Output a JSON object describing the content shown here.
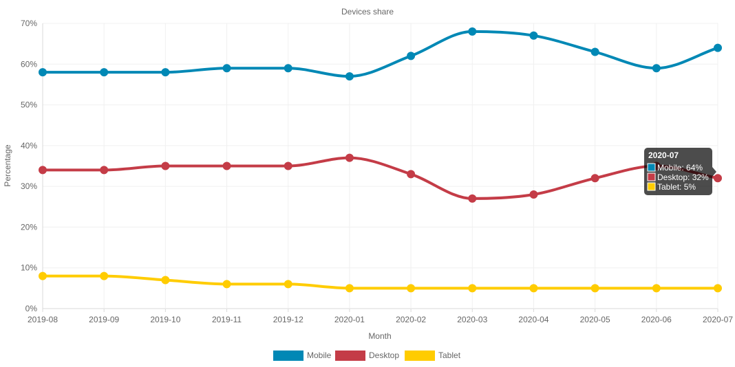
{
  "chart_data": {
    "type": "line",
    "title": "Devices share",
    "xlabel": "Month",
    "ylabel": "Percentage",
    "ylim": [
      0,
      70
    ],
    "yticks": [
      0,
      10,
      20,
      30,
      40,
      50,
      60,
      70
    ],
    "ytick_suffix": "%",
    "grid": true,
    "legend_position": "bottom",
    "categories": [
      "2019-08",
      "2019-09",
      "2019-10",
      "2019-11",
      "2019-12",
      "2020-01",
      "2020-02",
      "2020-03",
      "2020-04",
      "2020-05",
      "2020-06",
      "2020-07"
    ],
    "series": [
      {
        "name": "Mobile",
        "color": "#0088b5",
        "values": [
          58,
          58,
          58,
          59,
          59,
          57,
          62,
          68,
          67,
          63,
          59,
          64
        ]
      },
      {
        "name": "Desktop",
        "color": "#c43c47",
        "values": [
          34,
          34,
          35,
          35,
          35,
          37,
          33,
          27,
          28,
          32,
          35,
          32
        ]
      },
      {
        "name": "Tablet",
        "color": "#ffcc00",
        "values": [
          8,
          8,
          7,
          6,
          6,
          5,
          5,
          5,
          5,
          5,
          5,
          5
        ]
      }
    ],
    "tooltip": {
      "title": "2020-07",
      "lines": [
        "Mobile: 64%",
        "Desktop: 32%",
        "Tablet: 5%"
      ]
    }
  }
}
